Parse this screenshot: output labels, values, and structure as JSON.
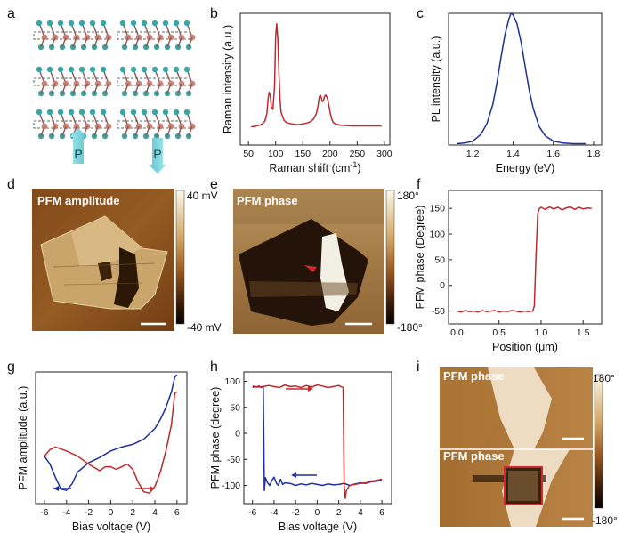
{
  "panel_labels": [
    "a",
    "b",
    "c",
    "d",
    "e",
    "f",
    "g",
    "h",
    "i"
  ],
  "panel_a": {
    "arrow_labels": [
      "P",
      "P"
    ]
  },
  "panel_d": {
    "title": "PFM amplitude",
    "cbar_max": "40 mV",
    "cbar_min": "-40 mV"
  },
  "panel_e": {
    "title": "PFM phase",
    "cbar_max": "180°",
    "cbar_min": "-180°"
  },
  "panel_i": {
    "title_top": "PFM phase",
    "title_bottom": "PFM phase",
    "cbar_max": "180°",
    "cbar_min": "-180°"
  },
  "colors": {
    "red_trace": "#c0282d",
    "blue_trace": "#1e2f9e",
    "arrow_cyan": "#7fd3dc"
  },
  "chart_data": [
    {
      "id": "b",
      "type": "line",
      "xlabel": "Raman shift (cm-1)",
      "ylabel": "Raman intensity (a.u.)",
      "xlim": [
        35,
        310
      ],
      "ylim": [
        0,
        1
      ],
      "xticks": [
        50,
        100,
        150,
        200,
        250,
        300
      ],
      "show_yticks": false,
      "series": [
        {
          "color": "#c0282d",
          "x": [
            55,
            60,
            65,
            70,
            75,
            80,
            84,
            86,
            88,
            90,
            92,
            95,
            98,
            100,
            102,
            104,
            106,
            108,
            110,
            115,
            120,
            130,
            140,
            150,
            160,
            165,
            170,
            175,
            178,
            180,
            182,
            184,
            186,
            188,
            190,
            192,
            195,
            198,
            200,
            203,
            206,
            210,
            220,
            240,
            260,
            280,
            295
          ],
          "y": [
            0.14,
            0.14,
            0.145,
            0.15,
            0.16,
            0.18,
            0.24,
            0.35,
            0.4,
            0.38,
            0.29,
            0.27,
            0.45,
            0.82,
            0.92,
            0.8,
            0.55,
            0.35,
            0.25,
            0.19,
            0.17,
            0.16,
            0.155,
            0.16,
            0.17,
            0.18,
            0.2,
            0.24,
            0.3,
            0.36,
            0.38,
            0.36,
            0.33,
            0.34,
            0.37,
            0.38,
            0.36,
            0.3,
            0.25,
            0.2,
            0.17,
            0.16,
            0.15,
            0.145,
            0.145,
            0.145,
            0.145
          ]
        }
      ]
    },
    {
      "id": "c",
      "type": "line",
      "xlabel": "Energy (eV)",
      "ylabel": "PL intensity (a.u.)",
      "xlim": [
        1.08,
        1.84
      ],
      "ylim": [
        0,
        1
      ],
      "xticks": [
        1.2,
        1.4,
        1.6,
        1.8
      ],
      "show_yticks": false,
      "series": [
        {
          "color": "#1e2f9e",
          "x": [
            1.12,
            1.16,
            1.2,
            1.24,
            1.27,
            1.3,
            1.32,
            1.34,
            1.36,
            1.38,
            1.39,
            1.4,
            1.42,
            1.44,
            1.46,
            1.48,
            1.5,
            1.53,
            1.56,
            1.6,
            1.65,
            1.7,
            1.76
          ],
          "y": [
            0.01,
            0.015,
            0.03,
            0.08,
            0.16,
            0.31,
            0.47,
            0.66,
            0.84,
            0.96,
            1.0,
            0.99,
            0.92,
            0.78,
            0.6,
            0.42,
            0.28,
            0.14,
            0.07,
            0.03,
            0.015,
            0.01,
            0.01
          ]
        }
      ]
    },
    {
      "id": "f",
      "type": "line",
      "xlabel": "Position (μm)",
      "ylabel": "PFM phase (Degree)",
      "xlim": [
        -0.1,
        1.72
      ],
      "ylim": [
        -75,
        185
      ],
      "xticks": [
        0.0,
        0.5,
        1.0,
        1.5
      ],
      "yticks": [
        -50,
        0,
        50,
        100,
        150
      ],
      "series": [
        {
          "color": "#c0282d",
          "x": [
            0,
            0.05,
            0.1,
            0.15,
            0.2,
            0.25,
            0.3,
            0.35,
            0.4,
            0.45,
            0.5,
            0.55,
            0.6,
            0.65,
            0.7,
            0.75,
            0.8,
            0.85,
            0.9,
            0.92,
            0.94,
            0.96,
            0.98,
            1.0,
            1.05,
            1.1,
            1.15,
            1.2,
            1.25,
            1.3,
            1.35,
            1.4,
            1.45,
            1.5,
            1.55,
            1.6
          ],
          "y": [
            -50,
            -52,
            -49,
            -51,
            -50,
            -52,
            -49,
            -51,
            -50,
            -49,
            -52,
            -50,
            -51,
            -49,
            -50,
            -52,
            -50,
            -51,
            -50,
            -40,
            60,
            140,
            150,
            152,
            148,
            153,
            149,
            152,
            147,
            151,
            153,
            148,
            152,
            149,
            151,
            150
          ]
        }
      ]
    },
    {
      "id": "g",
      "type": "line",
      "xlabel": "Bias voltage (V)",
      "ylabel": "PFM amplitude (a.u.)",
      "xlim": [
        -6.8,
        6.9
      ],
      "ylim": [
        0,
        1
      ],
      "xticks": [
        -6,
        -4,
        -2,
        0,
        2,
        4,
        6
      ],
      "show_yticks": false,
      "series": [
        {
          "color": "#1e2f9e",
          "x": [
            -6.0,
            -5.5,
            -5.0,
            -4.5,
            -4.0,
            -3.5,
            -3.0,
            -2.0,
            -1.0,
            0.0,
            1.0,
            2.0,
            3.0,
            4.0,
            4.5,
            5.0,
            5.5,
            5.8,
            6.0
          ],
          "y": [
            0.36,
            0.3,
            0.2,
            0.11,
            0.1,
            0.15,
            0.24,
            0.31,
            0.35,
            0.4,
            0.43,
            0.45,
            0.49,
            0.57,
            0.64,
            0.73,
            0.85,
            0.96,
            0.98
          ]
        },
        {
          "color": "#c0282d",
          "x": [
            6.0,
            5.8,
            5.5,
            5.0,
            4.5,
            4.0,
            3.5,
            3.0,
            2.5,
            2.0,
            1.5,
            1.0,
            0.5,
            0.0,
            -0.5,
            -1.0,
            -2.0,
            -3.0,
            -4.0,
            -5.0,
            -5.5,
            -6.0
          ],
          "y": [
            0.85,
            0.84,
            0.6,
            0.4,
            0.24,
            0.13,
            0.08,
            0.09,
            0.16,
            0.26,
            0.3,
            0.28,
            0.26,
            0.28,
            0.28,
            0.25,
            0.3,
            0.36,
            0.4,
            0.43,
            0.41,
            0.36
          ]
        }
      ]
    },
    {
      "id": "h",
      "type": "line",
      "xlabel": "Bias voltage (V)",
      "ylabel": "PFM phase (degree)",
      "xlim": [
        -6.8,
        6.9
      ],
      "ylim": [
        -135,
        118
      ],
      "xticks": [
        -6,
        -4,
        -2,
        0,
        2,
        4,
        6
      ],
      "yticks": [
        -100,
        -50,
        0,
        50,
        100
      ],
      "series": [
        {
          "color": "#1e2f9e",
          "x": [
            -6.0,
            -5.8,
            -5.6,
            -5.4,
            -5.2,
            -5.0,
            -4.9,
            -4.8,
            -4.6,
            -4.4,
            -4.2,
            -4.0,
            -3.8,
            -3.6,
            -3.4,
            -3.2,
            -3.0,
            -2.5,
            -2.0,
            -1.5,
            -1.0,
            -0.5,
            0.0,
            0.5,
            1.0,
            1.5,
            2.0,
            2.5,
            3.0,
            3.5,
            4.0,
            4.5,
            5.0,
            5.5,
            6.0
          ],
          "y": [
            88,
            90,
            89,
            91,
            88,
            90,
            -110,
            -85,
            -95,
            -100,
            -90,
            -84,
            -95,
            -100,
            -88,
            -98,
            -95,
            -96,
            -100,
            -97,
            -99,
            -96,
            -98,
            -100,
            -97,
            -99,
            -98,
            -96,
            -100,
            -97,
            -95,
            -96,
            -93,
            -92,
            -90
          ]
        },
        {
          "color": "#c0282d",
          "x": [
            6.0,
            5.5,
            5.0,
            4.5,
            4.0,
            3.5,
            3.0,
            2.7,
            2.6,
            2.5,
            2.4,
            2.2,
            2.0,
            1.5,
            1.0,
            0.5,
            0.0,
            -0.5,
            -1.0,
            -1.5,
            -2.0,
            -2.5,
            -3.0,
            -3.5,
            -4.0,
            -4.5,
            -5.0,
            -5.5,
            -6.0
          ],
          "y": [
            -88,
            -90,
            -92,
            -95,
            -96,
            -98,
            -100,
            -110,
            -125,
            -100,
            88,
            90,
            92,
            90,
            88,
            91,
            93,
            89,
            92,
            88,
            91,
            90,
            93,
            88,
            90,
            92,
            90,
            89,
            91
          ]
        }
      ]
    }
  ]
}
